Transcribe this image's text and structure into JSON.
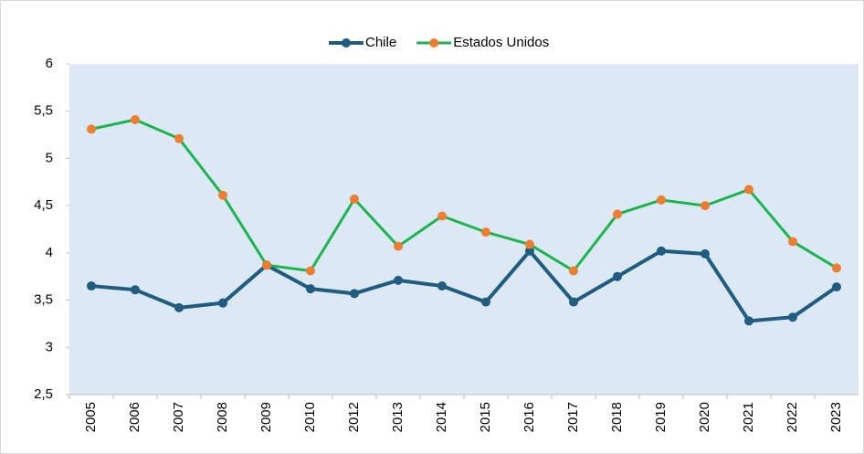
{
  "chart_data": {
    "type": "line",
    "categories": [
      "2005",
      "2006",
      "2007",
      "2008",
      "2009",
      "2010",
      "2012",
      "2013",
      "2014",
      "2015",
      "2016",
      "2017",
      "2018",
      "2019",
      "2020",
      "2021",
      "2022",
      "2023"
    ],
    "series": [
      {
        "name": "Chile",
        "color": "#1f5c80",
        "marker_color": "#1f5c80",
        "values": [
          3.65,
          3.61,
          3.42,
          3.47,
          3.87,
          3.62,
          3.57,
          3.71,
          3.65,
          3.48,
          4.02,
          3.48,
          3.75,
          4.02,
          3.99,
          3.28,
          3.32,
          3.64
        ]
      },
      {
        "name": "Estados Unidos",
        "color": "#1db34f",
        "marker_color": "#ed7d31",
        "values": [
          5.31,
          5.41,
          5.21,
          4.61,
          3.87,
          3.81,
          4.57,
          4.07,
          4.39,
          4.22,
          4.09,
          3.81,
          4.41,
          4.56,
          4.5,
          4.67,
          4.12,
          3.84
        ]
      }
    ],
    "ylim": [
      2.5,
      6
    ],
    "yticks": [
      {
        "value": 2.5,
        "label": "2,5"
      },
      3,
      {
        "value": 3.5,
        "label": "3,5"
      },
      4,
      {
        "value": 4.5,
        "label": "4,5"
      },
      5,
      {
        "value": 5.5,
        "label": "5,5"
      },
      6
    ],
    "legend": "top",
    "plot_background": "#dce9f5"
  }
}
